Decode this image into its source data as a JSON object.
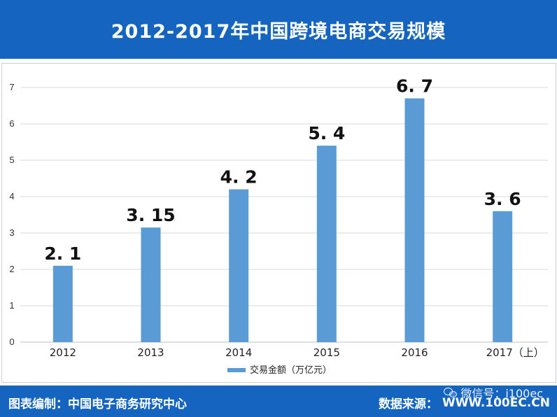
{
  "header": {
    "title": "2012-2017年中国跨境电商交易规模"
  },
  "footer": {
    "left_text": "图表编制：中国电子商务研究中心",
    "source_label": "数据来源：",
    "source_value": "WWW.100EC.CN"
  },
  "watermark": {
    "icon": "wechat-icon",
    "text": "微信号：i100ec"
  },
  "colors": {
    "header_bg": "#1565c0",
    "bar": "#5b9bd5",
    "grid": "#d9d9d9"
  },
  "chart_data": {
    "type": "bar",
    "title": "2012-2017年中国跨境电商交易规模",
    "categories": [
      "2012",
      "2013",
      "2014",
      "2015",
      "2016",
      "2017（上）"
    ],
    "series": [
      {
        "name": "交易金额（万亿元）",
        "values": [
          2.1,
          3.15,
          4.2,
          5.4,
          6.7,
          3.6
        ],
        "data_labels": [
          "2. 1",
          "3. 15",
          "4. 2",
          "5. 4",
          "6. 7",
          "3. 6"
        ]
      }
    ],
    "ylim": [
      0,
      7
    ],
    "yticks": [
      "0",
      "1",
      "2",
      "3",
      "4",
      "5",
      "6",
      "7"
    ],
    "grid": true,
    "legend": "bottom"
  }
}
